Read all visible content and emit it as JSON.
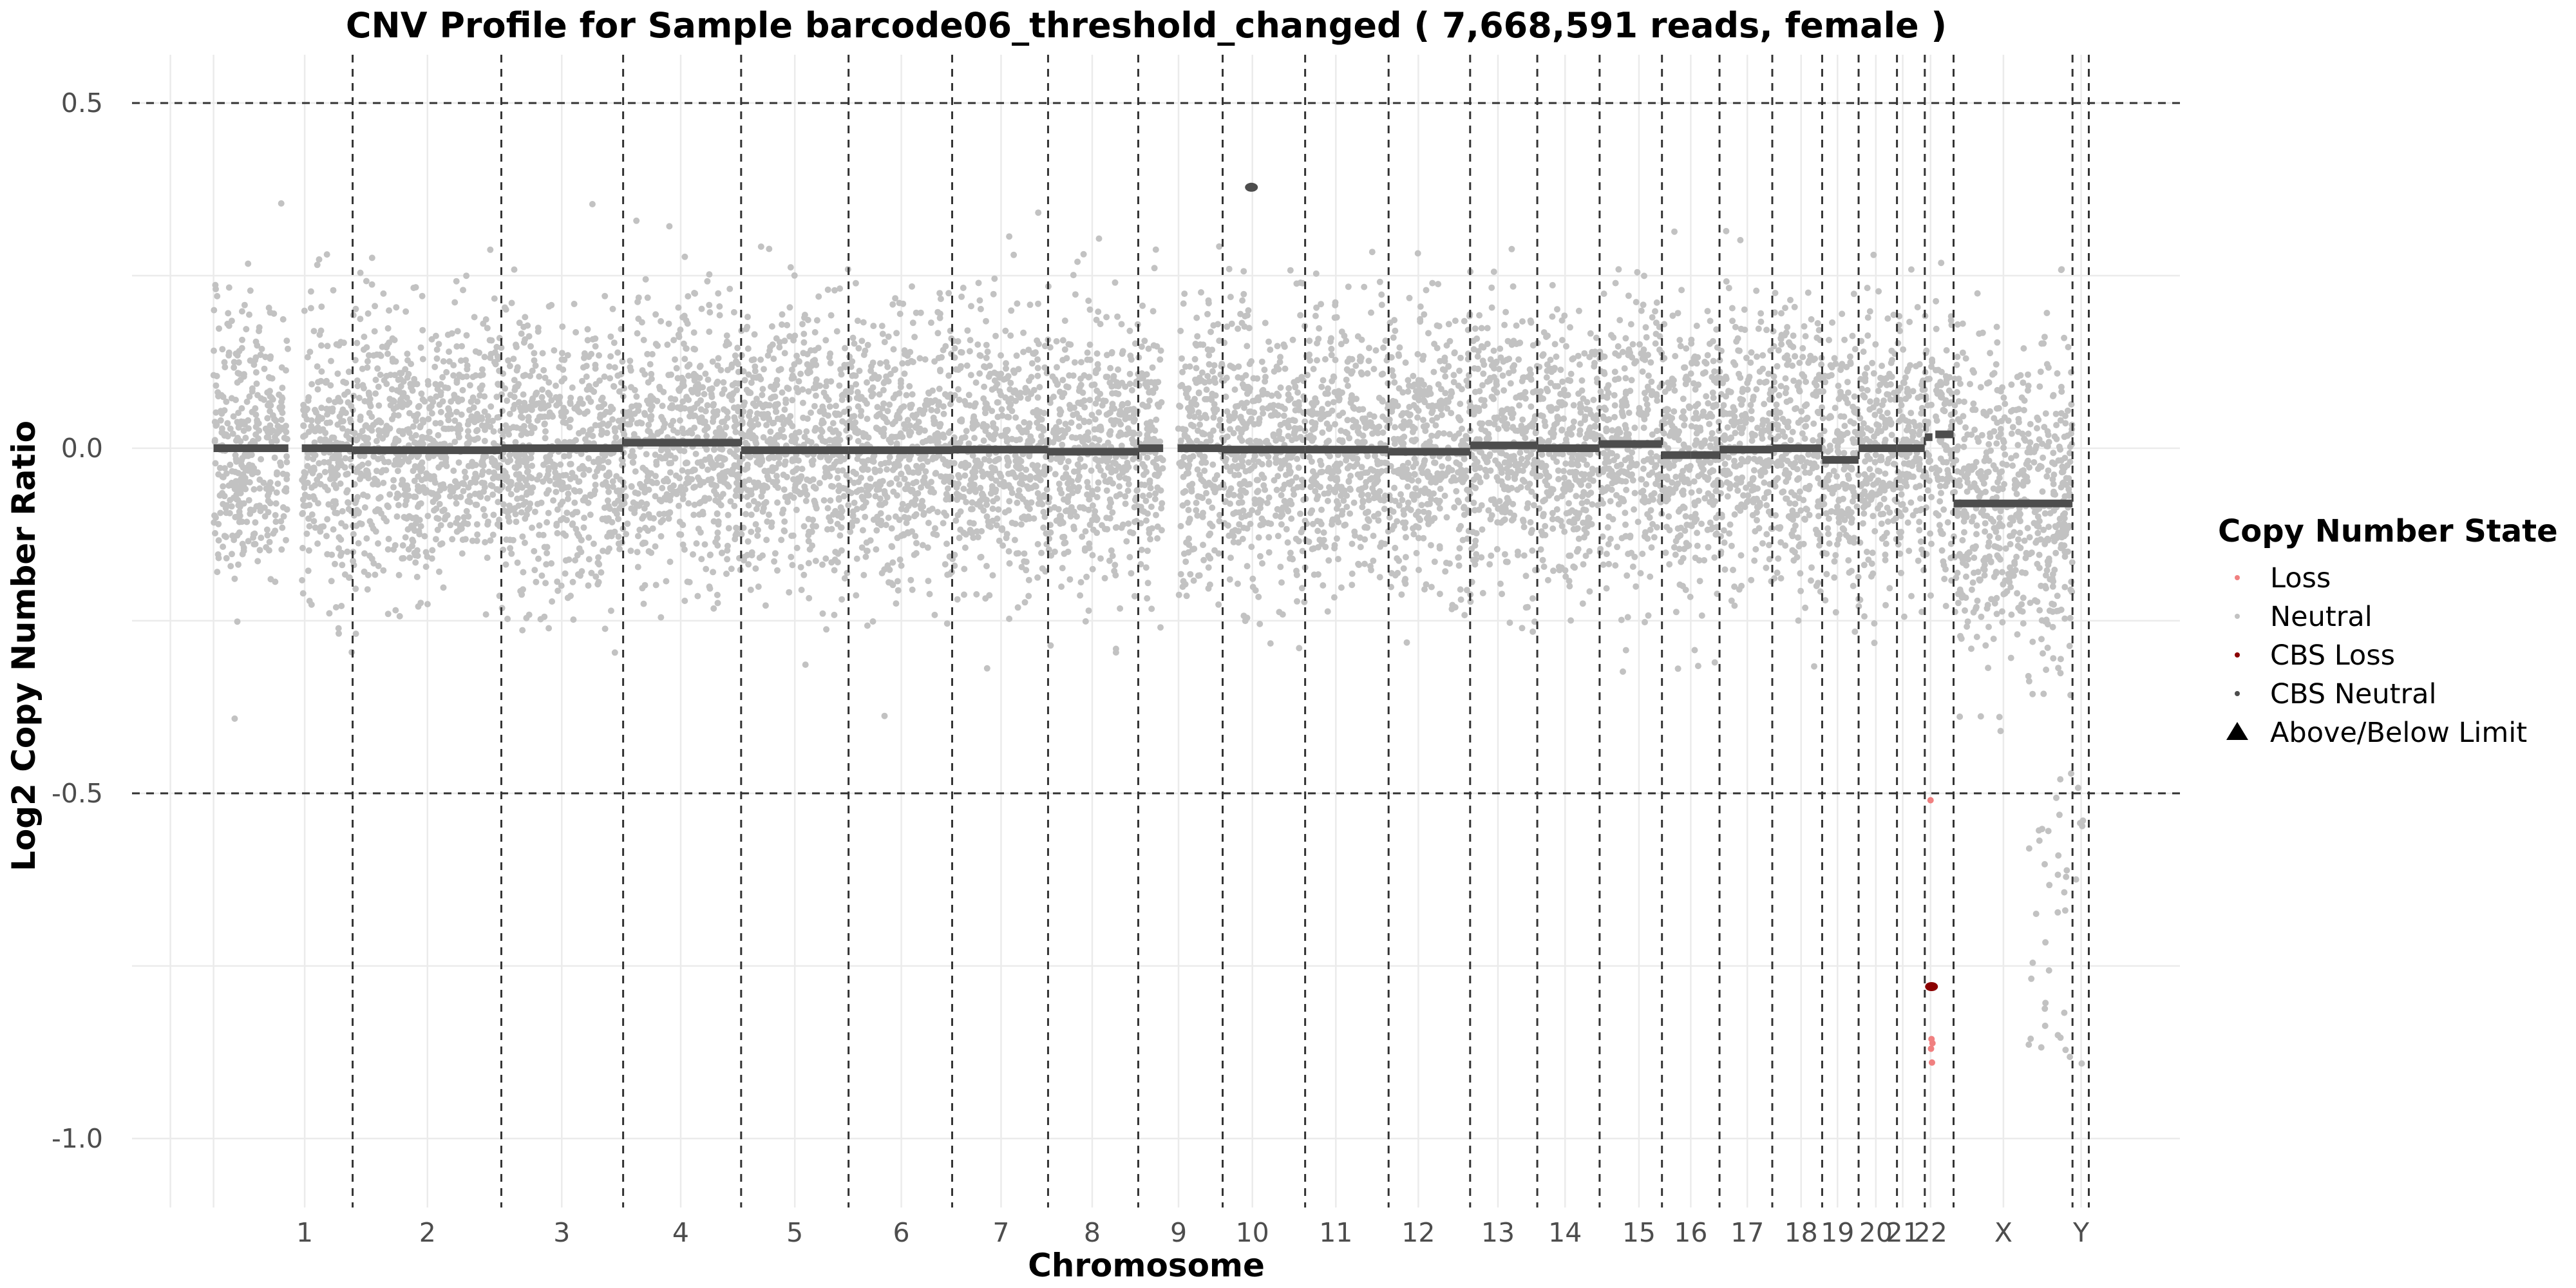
{
  "chart_data": {
    "type": "scatter",
    "title": "CNV Profile for Sample barcode06_threshold_changed ( 7,668,591 reads, female )",
    "xlabel": "Chromosome",
    "ylabel": "Log2 Copy Number Ratio",
    "ylim": [
      -1.1,
      0.57
    ],
    "y_ticks": [
      0.5,
      0.0,
      -0.5,
      -1.0
    ],
    "y_tick_labels": [
      "0.5",
      "0.0",
      "-0.5",
      "-1.0"
    ],
    "threshold_lines": [
      0.5,
      -0.5
    ],
    "grid": true,
    "legend_position": "right",
    "colors": {
      "Loss": "#f08080",
      "Neutral": "#c2c2c2",
      "CBS Loss": "#8b0000",
      "CBS Neutral": "#4d4d4d",
      "Above/Below Limit": "#000000",
      "divider": "#333333",
      "gridline": "#ebebeb"
    },
    "chromosomes": [
      {
        "label": "1",
        "start": 0.0,
        "end": 1.45,
        "label_pos": 0.95
      },
      {
        "label": "2",
        "start": 1.45,
        "end": 3.0,
        "label_pos": 2.23
      },
      {
        "label": "3",
        "start": 3.0,
        "end": 4.27,
        "label_pos": 3.63
      },
      {
        "label": "4",
        "start": 4.27,
        "end": 5.5,
        "label_pos": 4.87
      },
      {
        "label": "5",
        "start": 5.5,
        "end": 6.62,
        "label_pos": 6.06
      },
      {
        "label": "6",
        "start": 6.62,
        "end": 7.7,
        "label_pos": 7.17
      },
      {
        "label": "7",
        "start": 7.7,
        "end": 8.7,
        "label_pos": 8.21
      },
      {
        "label": "8",
        "start": 8.7,
        "end": 9.64,
        "label_pos": 9.16
      },
      {
        "label": "9",
        "start": 9.64,
        "end": 10.52,
        "label_pos": 10.06
      },
      {
        "label": "10",
        "start": 10.52,
        "end": 11.38,
        "label_pos": 10.83
      },
      {
        "label": "11",
        "start": 11.38,
        "end": 12.25,
        "label_pos": 11.7
      },
      {
        "label": "12",
        "start": 12.25,
        "end": 13.1,
        "label_pos": 12.56
      },
      {
        "label": "13",
        "start": 13.1,
        "end": 13.8,
        "label_pos": 13.39
      },
      {
        "label": "14",
        "start": 13.8,
        "end": 14.45,
        "label_pos": 14.09
      },
      {
        "label": "15",
        "start": 14.45,
        "end": 15.1,
        "label_pos": 14.86
      },
      {
        "label": "16",
        "start": 15.1,
        "end": 15.7,
        "label_pos": 15.4
      },
      {
        "label": "17",
        "start": 15.7,
        "end": 16.25,
        "label_pos": 15.99
      },
      {
        "label": "18",
        "start": 16.25,
        "end": 16.77,
        "label_pos": 16.55
      },
      {
        "label": "19",
        "start": 16.77,
        "end": 17.15,
        "label_pos": 16.93
      },
      {
        "label": "20",
        "start": 17.15,
        "end": 17.55,
        "label_pos": 17.33
      },
      {
        "label": "21",
        "start": 17.55,
        "end": 17.84,
        "label_pos": 17.61
      },
      {
        "label": "22",
        "start": 17.84,
        "end": 18.14,
        "label_pos": 17.9
      },
      {
        "label": "X",
        "start": 18.14,
        "end": 19.38,
        "label_pos": 18.66
      },
      {
        "label": "Y",
        "start": 19.38,
        "end": 19.55,
        "label_pos": 19.47
      }
    ],
    "x_range": [
      -0.85,
      20.5
    ],
    "segments": [
      {
        "chrom": "1",
        "x0": 0.0,
        "x1": 0.78,
        "y": 0.0
      },
      {
        "chrom": "1",
        "x0": 0.92,
        "x1": 1.45,
        "y": 0.0
      },
      {
        "chrom": "2",
        "x0": 1.45,
        "x1": 3.0,
        "y": -0.003
      },
      {
        "chrom": "3",
        "x0": 3.0,
        "x1": 4.27,
        "y": 0.0
      },
      {
        "chrom": "4",
        "x0": 4.27,
        "x1": 5.5,
        "y": 0.008
      },
      {
        "chrom": "5",
        "x0": 5.5,
        "x1": 6.62,
        "y": -0.003
      },
      {
        "chrom": "6",
        "x0": 6.62,
        "x1": 7.7,
        "y": -0.003
      },
      {
        "chrom": "7",
        "x0": 7.7,
        "x1": 8.7,
        "y": -0.002
      },
      {
        "chrom": "8",
        "x0": 8.7,
        "x1": 9.64,
        "y": -0.005
      },
      {
        "chrom": "9",
        "x0": 9.64,
        "x1": 9.9,
        "y": 0.0
      },
      {
        "chrom": "9",
        "x0": 10.05,
        "x1": 10.52,
        "y": 0.0
      },
      {
        "chrom": "10",
        "x0": 10.52,
        "x1": 11.38,
        "y": -0.002
      },
      {
        "chrom": "11",
        "x0": 11.38,
        "x1": 12.25,
        "y": -0.002
      },
      {
        "chrom": "12",
        "x0": 12.25,
        "x1": 13.1,
        "y": -0.005
      },
      {
        "chrom": "13",
        "x0": 13.1,
        "x1": 13.8,
        "y": 0.004
      },
      {
        "chrom": "14",
        "x0": 13.8,
        "x1": 14.45,
        "y": 0.0
      },
      {
        "chrom": "15",
        "x0": 14.45,
        "x1": 15.1,
        "y": 0.006
      },
      {
        "chrom": "16",
        "x0": 15.1,
        "x1": 15.4,
        "y": -0.01
      },
      {
        "chrom": "16",
        "x0": 15.4,
        "x1": 15.7,
        "y": -0.01
      },
      {
        "chrom": "17",
        "x0": 15.7,
        "x1": 16.25,
        "y": -0.002
      },
      {
        "chrom": "18",
        "x0": 16.25,
        "x1": 16.77,
        "y": 0.0
      },
      {
        "chrom": "19",
        "x0": 16.77,
        "x1": 17.15,
        "y": -0.017
      },
      {
        "chrom": "20",
        "x0": 17.15,
        "x1": 17.55,
        "y": 0.0
      },
      {
        "chrom": "21",
        "x0": 17.55,
        "x1": 17.84,
        "y": 0.0
      },
      {
        "chrom": "22",
        "x0": 17.84,
        "x1": 17.92,
        "y": 0.016
      },
      {
        "chrom": "22",
        "x0": 17.95,
        "x1": 18.14,
        "y": 0.02
      },
      {
        "chrom": "X",
        "x0": 18.14,
        "x1": 19.38,
        "y": -0.08
      }
    ],
    "cbs_outliers": [
      {
        "x": 10.82,
        "y": 0.378,
        "state": "CBS Neutral"
      },
      {
        "x": 17.91,
        "y": -0.78,
        "state": "CBS Loss"
      }
    ],
    "loss_points": [
      {
        "x": 17.9,
        "y": -0.51
      },
      {
        "x": 17.91,
        "y": -0.856
      },
      {
        "x": 17.92,
        "y": -0.862
      },
      {
        "x": 17.905,
        "y": -0.87
      },
      {
        "x": 17.915,
        "y": -0.89
      }
    ],
    "neutral_point_count_estimate": 9000,
    "neutral_point_spread_sd": 0.1,
    "legend": {
      "title": "Copy Number State",
      "items": [
        {
          "label": "Loss",
          "shape": "dot"
        },
        {
          "label": "Neutral",
          "shape": "dot"
        },
        {
          "label": "CBS Loss",
          "shape": "dot"
        },
        {
          "label": "CBS Neutral",
          "shape": "dot"
        },
        {
          "label": "Above/Below Limit",
          "shape": "triangle"
        }
      ]
    }
  }
}
